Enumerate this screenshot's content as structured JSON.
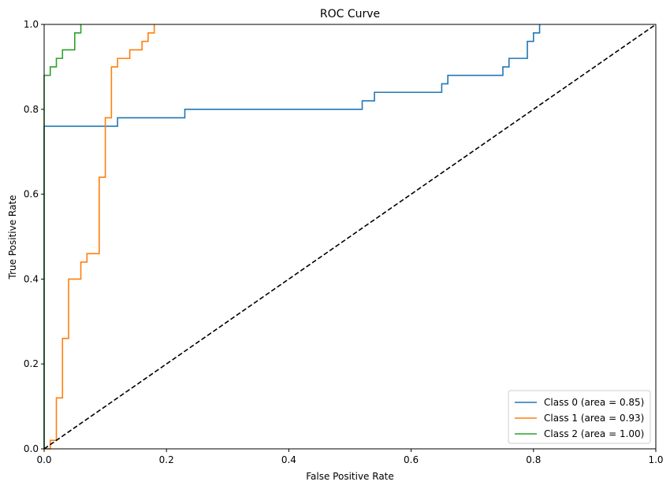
{
  "chart_data": {
    "type": "line",
    "title": "ROC Curve",
    "xlabel": "False Positive Rate",
    "ylabel": "True Positive Rate",
    "xlim": [
      0,
      1
    ],
    "ylim": [
      0,
      1
    ],
    "grid": false,
    "legend_position": "bottom-right",
    "x_ticks": [
      "0.0",
      "0.2",
      "0.4",
      "0.6",
      "0.8",
      "1.0"
    ],
    "y_ticks": [
      "0.0",
      "0.2",
      "0.4",
      "0.6",
      "0.8",
      "1.0"
    ],
    "series": [
      {
        "name": "Class 0 (area = 0.85)",
        "color": "#1f77b4",
        "x": [
          0,
          0,
          0.12,
          0.12,
          0.23,
          0.23,
          0.52,
          0.52,
          0.54,
          0.54,
          0.65,
          0.65,
          0.66,
          0.66,
          0.75,
          0.75,
          0.76,
          0.76,
          0.79,
          0.79,
          0.8,
          0.8,
          0.81,
          0.81
        ],
        "y": [
          0,
          0.76,
          0.76,
          0.78,
          0.78,
          0.8,
          0.8,
          0.82,
          0.82,
          0.84,
          0.84,
          0.86,
          0.86,
          0.88,
          0.88,
          0.9,
          0.9,
          0.92,
          0.92,
          0.96,
          0.96,
          0.98,
          0.98,
          1.0
        ]
      },
      {
        "name": "Class 1 (area = 0.93)",
        "color": "#ff7f0e",
        "x": [
          0,
          0.01,
          0.01,
          0.02,
          0.02,
          0.03,
          0.03,
          0.04,
          0.04,
          0.06,
          0.06,
          0.07,
          0.07,
          0.09,
          0.09,
          0.1,
          0.1,
          0.11,
          0.11,
          0.12,
          0.12,
          0.14,
          0.14,
          0.16,
          0.16,
          0.17,
          0.17,
          0.18,
          0.18
        ],
        "y": [
          0,
          0,
          0.02,
          0.02,
          0.12,
          0.12,
          0.26,
          0.26,
          0.4,
          0.4,
          0.44,
          0.44,
          0.46,
          0.46,
          0.64,
          0.64,
          0.78,
          0.78,
          0.9,
          0.9,
          0.92,
          0.92,
          0.94,
          0.94,
          0.96,
          0.96,
          0.98,
          0.98,
          1.0
        ]
      },
      {
        "name": "Class 2 (area = 1.00)",
        "color": "#2ca02c",
        "x": [
          0,
          0,
          0.01,
          0.01,
          0.02,
          0.02,
          0.03,
          0.03,
          0.05,
          0.05,
          0.06,
          0.06
        ],
        "y": [
          0,
          0.88,
          0.88,
          0.9,
          0.9,
          0.92,
          0.92,
          0.94,
          0.94,
          0.98,
          0.98,
          1.0
        ]
      },
      {
        "color": "#000000",
        "line_style": "dashed",
        "x": [
          0,
          1
        ],
        "y": [
          0,
          1
        ]
      }
    ]
  }
}
